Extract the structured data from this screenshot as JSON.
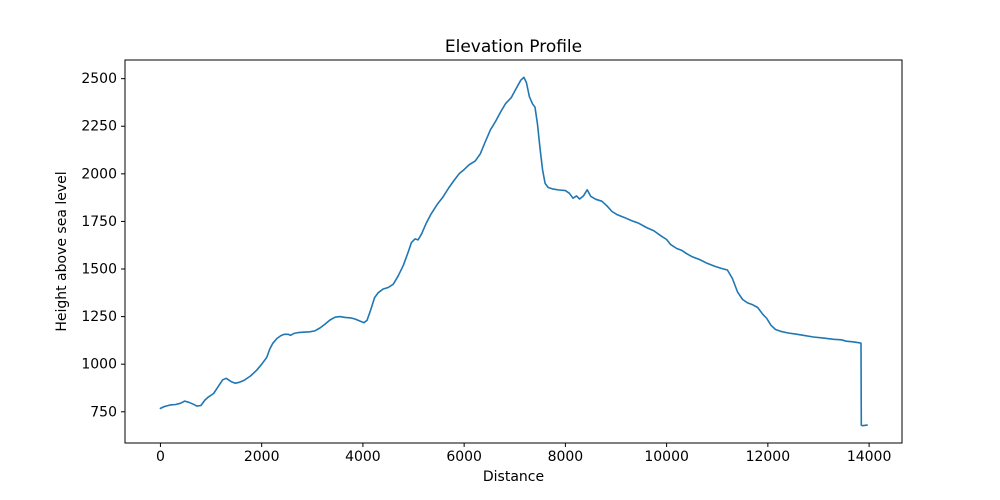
{
  "chart_data": {
    "type": "line",
    "title": "Elevation Profile",
    "xlabel": "Distance",
    "ylabel": "Height above sea level",
    "xticks": [
      0,
      2000,
      4000,
      6000,
      8000,
      10000,
      12000,
      14000
    ],
    "yticks": [
      750,
      1000,
      1250,
      1500,
      1750,
      2000,
      2250,
      2500
    ],
    "xlim": [
      -700,
      14650
    ],
    "ylim": [
      586,
      2598
    ],
    "grid": false,
    "legend": "none",
    "line_color": "#1f77b4",
    "axis_color": "#000000",
    "background": "#ffffff",
    "series_name": "elevation",
    "points": [
      [
        0,
        768
      ],
      [
        80,
        778
      ],
      [
        200,
        786
      ],
      [
        300,
        788
      ],
      [
        400,
        795
      ],
      [
        480,
        806
      ],
      [
        560,
        800
      ],
      [
        650,
        790
      ],
      [
        720,
        780
      ],
      [
        800,
        783
      ],
      [
        880,
        812
      ],
      [
        950,
        828
      ],
      [
        1050,
        846
      ],
      [
        1150,
        886
      ],
      [
        1230,
        918
      ],
      [
        1300,
        926
      ],
      [
        1400,
        908
      ],
      [
        1480,
        900
      ],
      [
        1560,
        905
      ],
      [
        1650,
        915
      ],
      [
        1780,
        938
      ],
      [
        1900,
        968
      ],
      [
        2000,
        1000
      ],
      [
        2100,
        1035
      ],
      [
        2160,
        1080
      ],
      [
        2220,
        1110
      ],
      [
        2300,
        1135
      ],
      [
        2380,
        1150
      ],
      [
        2450,
        1157
      ],
      [
        2520,
        1157
      ],
      [
        2570,
        1152
      ],
      [
        2640,
        1162
      ],
      [
        2720,
        1166
      ],
      [
        2820,
        1168
      ],
      [
        2950,
        1170
      ],
      [
        3050,
        1175
      ],
      [
        3150,
        1190
      ],
      [
        3250,
        1210
      ],
      [
        3350,
        1232
      ],
      [
        3450,
        1247
      ],
      [
        3550,
        1250
      ],
      [
        3650,
        1246
      ],
      [
        3760,
        1243
      ],
      [
        3850,
        1237
      ],
      [
        3950,
        1226
      ],
      [
        4020,
        1218
      ],
      [
        4080,
        1230
      ],
      [
        4150,
        1282
      ],
      [
        4230,
        1350
      ],
      [
        4300,
        1375
      ],
      [
        4400,
        1395
      ],
      [
        4500,
        1403
      ],
      [
        4600,
        1420
      ],
      [
        4700,
        1465
      ],
      [
        4800,
        1520
      ],
      [
        4890,
        1586
      ],
      [
        4960,
        1640
      ],
      [
        5030,
        1658
      ],
      [
        5090,
        1653
      ],
      [
        5160,
        1685
      ],
      [
        5250,
        1740
      ],
      [
        5350,
        1790
      ],
      [
        5470,
        1840
      ],
      [
        5580,
        1878
      ],
      [
        5700,
        1928
      ],
      [
        5800,
        1965
      ],
      [
        5900,
        2000
      ],
      [
        6000,
        2022
      ],
      [
        6100,
        2048
      ],
      [
        6220,
        2068
      ],
      [
        6320,
        2105
      ],
      [
        6420,
        2170
      ],
      [
        6520,
        2232
      ],
      [
        6620,
        2275
      ],
      [
        6720,
        2325
      ],
      [
        6820,
        2370
      ],
      [
        6930,
        2400
      ],
      [
        7030,
        2450
      ],
      [
        7120,
        2492
      ],
      [
        7180,
        2507
      ],
      [
        7230,
        2480
      ],
      [
        7290,
        2405
      ],
      [
        7350,
        2368
      ],
      [
        7400,
        2350
      ],
      [
        7450,
        2260
      ],
      [
        7500,
        2130
      ],
      [
        7550,
        2020
      ],
      [
        7600,
        1950
      ],
      [
        7660,
        1928
      ],
      [
        7760,
        1920
      ],
      [
        7880,
        1915
      ],
      [
        8000,
        1912
      ],
      [
        8080,
        1898
      ],
      [
        8150,
        1872
      ],
      [
        8220,
        1884
      ],
      [
        8280,
        1868
      ],
      [
        8360,
        1885
      ],
      [
        8430,
        1916
      ],
      [
        8500,
        1882
      ],
      [
        8600,
        1866
      ],
      [
        8720,
        1856
      ],
      [
        8820,
        1832
      ],
      [
        8920,
        1802
      ],
      [
        9020,
        1786
      ],
      [
        9150,
        1772
      ],
      [
        9300,
        1755
      ],
      [
        9450,
        1740
      ],
      [
        9600,
        1718
      ],
      [
        9750,
        1700
      ],
      [
        9900,
        1672
      ],
      [
        10000,
        1655
      ],
      [
        10080,
        1628
      ],
      [
        10200,
        1608
      ],
      [
        10300,
        1598
      ],
      [
        10400,
        1580
      ],
      [
        10500,
        1565
      ],
      [
        10650,
        1550
      ],
      [
        10800,
        1530
      ],
      [
        10950,
        1515
      ],
      [
        11080,
        1503
      ],
      [
        11200,
        1495
      ],
      [
        11300,
        1450
      ],
      [
        11400,
        1380
      ],
      [
        11500,
        1340
      ],
      [
        11600,
        1322
      ],
      [
        11700,
        1312
      ],
      [
        11800,
        1298
      ],
      [
        11900,
        1262
      ],
      [
        11980,
        1240
      ],
      [
        12060,
        1205
      ],
      [
        12150,
        1182
      ],
      [
        12250,
        1173
      ],
      [
        12400,
        1164
      ],
      [
        12550,
        1158
      ],
      [
        12700,
        1152
      ],
      [
        12900,
        1143
      ],
      [
        13100,
        1137
      ],
      [
        13300,
        1131
      ],
      [
        13450,
        1128
      ],
      [
        13550,
        1121
      ],
      [
        13700,
        1117
      ],
      [
        13820,
        1112
      ],
      [
        13840,
        1110
      ],
      [
        13845,
        680
      ],
      [
        13870,
        677
      ],
      [
        13960,
        680
      ]
    ]
  }
}
